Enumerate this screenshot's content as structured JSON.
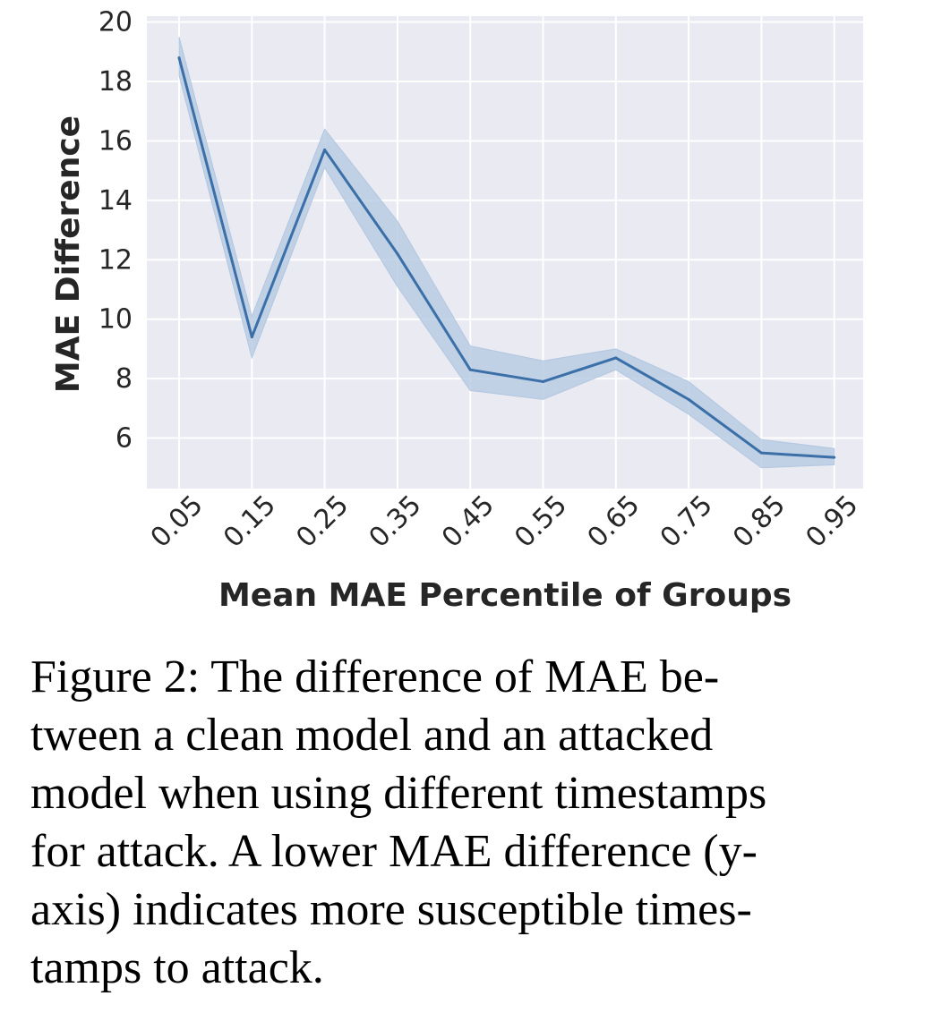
{
  "chart_data": {
    "type": "line",
    "title": "",
    "xlabel": "Mean MAE Percentile of Groups",
    "ylabel": "MAE Difference",
    "categories": [
      "0.05",
      "0.15",
      "0.25",
      "0.35",
      "0.45",
      "0.55",
      "0.65",
      "0.75",
      "0.85",
      "0.95"
    ],
    "series": [
      {
        "name": "MAE Difference",
        "values": [
          18.8,
          9.4,
          15.7,
          12.2,
          8.3,
          7.9,
          8.7,
          7.3,
          5.5,
          5.35
        ],
        "ci_lower": [
          18.2,
          8.7,
          15.1,
          11.1,
          7.6,
          7.3,
          8.3,
          6.8,
          5.0,
          5.1
        ],
        "ci_upper": [
          19.5,
          10.1,
          16.4,
          13.3,
          9.1,
          8.6,
          9.0,
          7.9,
          5.95,
          5.65
        ]
      }
    ],
    "yticks": [
      6,
      8,
      10,
      12,
      14,
      16,
      18,
      20
    ],
    "ylim": [
      4.3,
      20.2
    ],
    "grid": true,
    "colors": {
      "line": "#3b6fa8",
      "band": "#b2c7e0",
      "plot_bg": "#eaeaf2",
      "grid": "#ffffff"
    }
  },
  "caption": {
    "lines": [
      "Figure 2:  The difference of MAE be-",
      "tween a clean model and an attacked",
      "model when using different timestamps",
      "for attack. A lower MAE difference (y-",
      "axis) indicates more susceptible times-",
      "tamps to attack."
    ]
  }
}
